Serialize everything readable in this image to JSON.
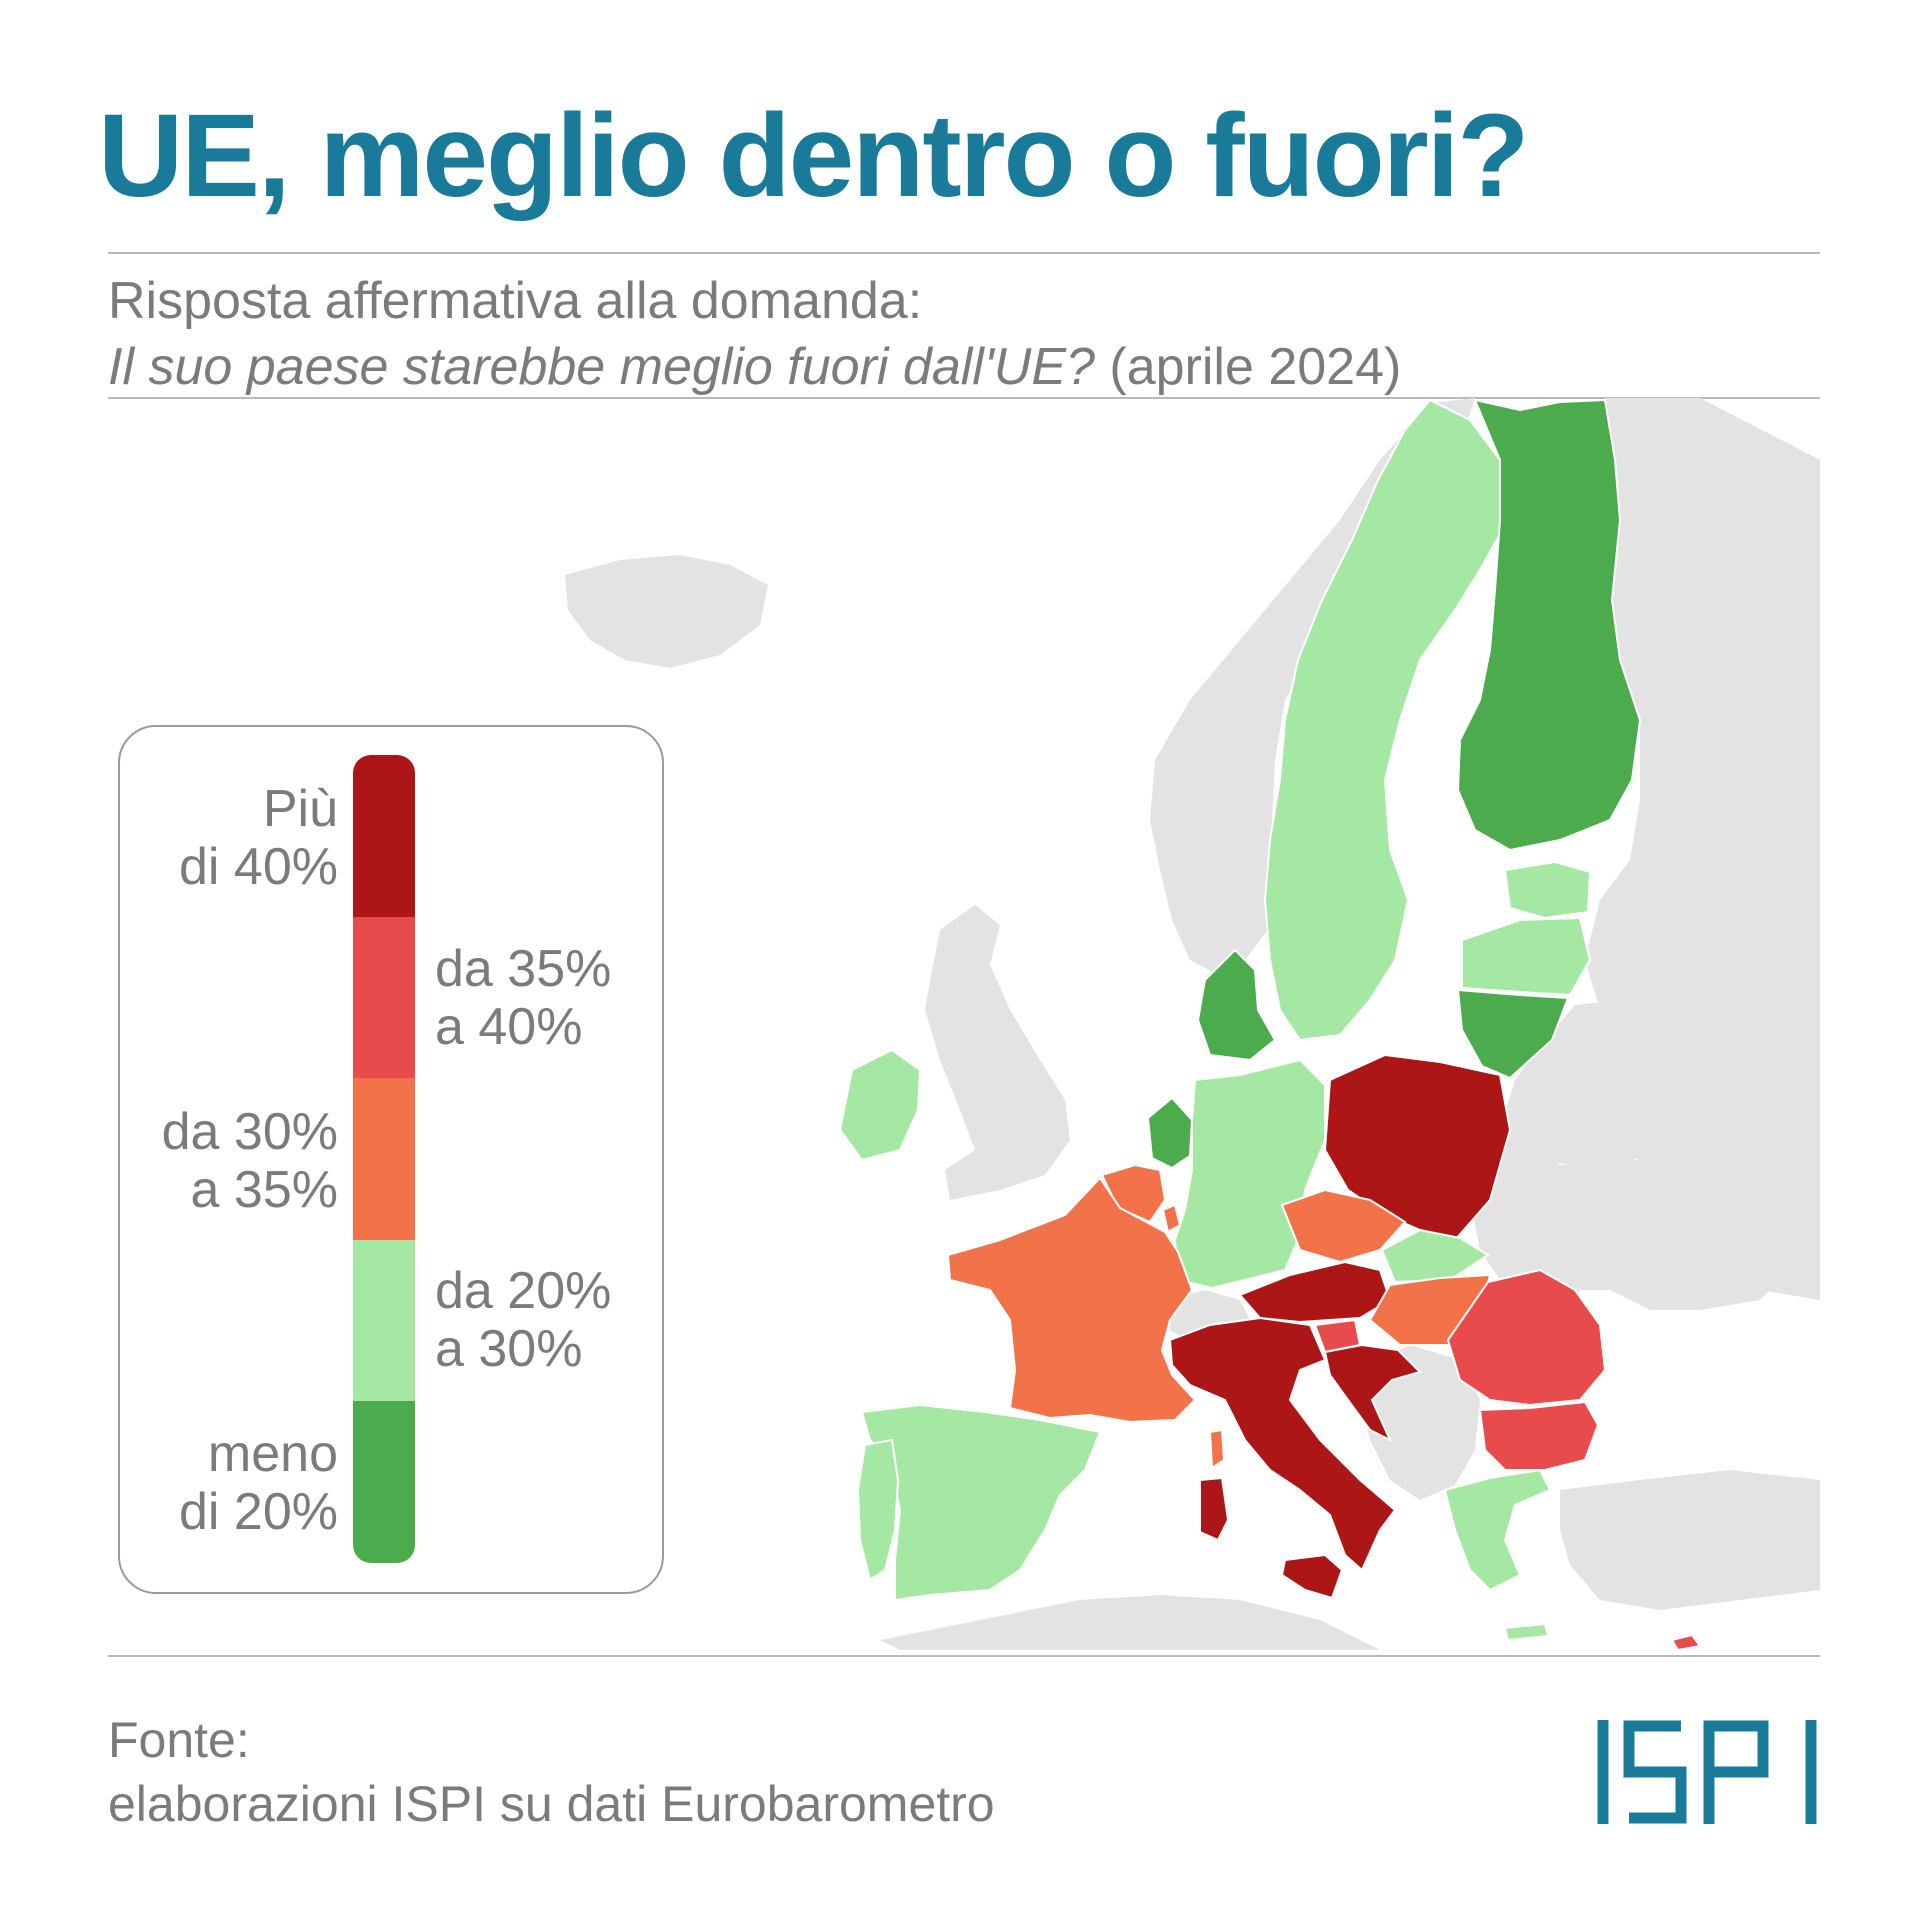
{
  "title": "UE, meglio dentro o fuori?",
  "subtitle": {
    "line1": "Risposta affermativa alla domanda:",
    "question": "Il suo paese starebbe meglio fuori dall'UE?",
    "date": "(aprile 2024)"
  },
  "legend": [
    {
      "line1": "Più",
      "line2": "di 40%",
      "color": "#ac1616"
    },
    {
      "line1": "da 35%",
      "line2": "a 40%",
      "color": "#e84b4b"
    },
    {
      "line1": "da 30%",
      "line2": "a 35%",
      "color": "#f2734a"
    },
    {
      "line1": "da 20%",
      "line2": "a 30%",
      "color": "#a4e8a4"
    },
    {
      "line1": "meno",
      "line2": "di 20%",
      "color": "#4cab4c"
    }
  ],
  "map_data": {
    "non_eu_color": "#e3e3e3",
    "countries": [
      {
        "name": "Sweden",
        "category": "da 20% a 30%"
      },
      {
        "name": "Finland",
        "category": "meno di 20%"
      },
      {
        "name": "Estonia",
        "category": "da 20% a 30%"
      },
      {
        "name": "Latvia",
        "category": "da 20% a 30%"
      },
      {
        "name": "Lithuania",
        "category": "meno di 20%"
      },
      {
        "name": "Denmark",
        "category": "meno di 20%"
      },
      {
        "name": "Ireland",
        "category": "da 20% a 30%"
      },
      {
        "name": "Netherlands",
        "category": "meno di 20%"
      },
      {
        "name": "Belgium",
        "category": "da 30% a 35%"
      },
      {
        "name": "Luxembourg",
        "category": "da 30% a 35%"
      },
      {
        "name": "Germany",
        "category": "da 20% a 30%"
      },
      {
        "name": "Poland",
        "category": "Più di 40%"
      },
      {
        "name": "Czechia",
        "category": "da 30% a 35%"
      },
      {
        "name": "Slovakia",
        "category": "da 20% a 30%"
      },
      {
        "name": "Austria",
        "category": "Più di 40%"
      },
      {
        "name": "Hungary",
        "category": "da 30% a 35%"
      },
      {
        "name": "Slovenia",
        "category": "da 35% a 40%"
      },
      {
        "name": "Croatia",
        "category": "Più di 40%"
      },
      {
        "name": "Italy",
        "category": "Più di 40%"
      },
      {
        "name": "France",
        "category": "da 30% a 35%"
      },
      {
        "name": "Spain",
        "category": "da 20% a 30%"
      },
      {
        "name": "Portugal",
        "category": "da 20% a 30%"
      },
      {
        "name": "Romania",
        "category": "da 35% a 40%"
      },
      {
        "name": "Bulgaria",
        "category": "da 35% a 40%"
      },
      {
        "name": "Greece",
        "category": "da 20% a 30%"
      },
      {
        "name": "Cyprus",
        "category": "da 35% a 40%"
      },
      {
        "name": "Malta",
        "category": "da 20% a 30%"
      }
    ]
  },
  "source": {
    "line1": "Fonte:",
    "line2": "elaborazioni ISPI su dati Eurobarometro"
  },
  "logo": "ISPI",
  "colors": {
    "title": "#1a7a99",
    "text": "#7b7b7b",
    "rule": "#b9b9b9"
  }
}
